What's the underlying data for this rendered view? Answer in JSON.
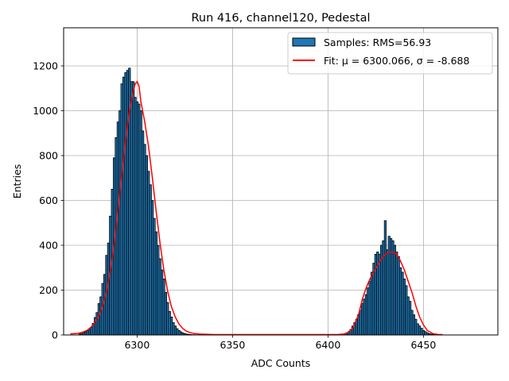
{
  "chart_data": {
    "type": "bar",
    "title": "Run 416, channel120, Pedestal",
    "xlabel": "ADC Counts",
    "ylabel": "Entries",
    "xlim": [
      6261.5,
      6489
    ],
    "ylim": [
      0,
      1370
    ],
    "xticks": [
      6300,
      6350,
      6400,
      6450
    ],
    "yticks": [
      0,
      200,
      400,
      600,
      800,
      1000,
      1200
    ],
    "grid": true,
    "legend_position": "top-right",
    "bin_width": 1,
    "series": [
      {
        "name": "Samples: RMS=56.93",
        "kind": "histogram",
        "color": "#1f77b4",
        "edgecolor": "#000000",
        "x": [
          6270,
          6271,
          6272,
          6273,
          6274,
          6275,
          6276,
          6277,
          6278,
          6279,
          6280,
          6281,
          6282,
          6283,
          6284,
          6285,
          6286,
          6287,
          6288,
          6289,
          6290,
          6291,
          6292,
          6293,
          6294,
          6295,
          6296,
          6297,
          6298,
          6299,
          6300,
          6301,
          6302,
          6303,
          6304,
          6305,
          6306,
          6307,
          6308,
          6309,
          6310,
          6311,
          6312,
          6313,
          6314,
          6315,
          6316,
          6317,
          6318,
          6319,
          6320,
          6321,
          6322,
          6323,
          6324,
          6325,
          6326,
          6327,
          6328,
          6329,
          6330,
          6409,
          6410,
          6411,
          6412,
          6413,
          6414,
          6415,
          6416,
          6417,
          6418,
          6419,
          6420,
          6421,
          6422,
          6423,
          6424,
          6425,
          6426,
          6427,
          6428,
          6429,
          6430,
          6431,
          6432,
          6433,
          6434,
          6435,
          6436,
          6437,
          6438,
          6439,
          6440,
          6441,
          6442,
          6443,
          6444,
          6445,
          6446,
          6447,
          6448,
          6449,
          6450,
          6451,
          6452,
          6453,
          6454,
          6455,
          6456,
          6457,
          6458,
          6459
        ],
        "values": [
          4,
          6,
          10,
          14,
          20,
          26,
          34,
          52,
          78,
          100,
          140,
          170,
          230,
          270,
          355,
          410,
          530,
          650,
          790,
          880,
          950,
          1000,
          1120,
          1150,
          1170,
          1180,
          1190,
          1130,
          1130,
          1060,
          1040,
          1030,
          1000,
          910,
          850,
          800,
          730,
          670,
          600,
          520,
          460,
          400,
          340,
          290,
          250,
          190,
          145,
          105,
          80,
          55,
          40,
          28,
          20,
          14,
          9,
          6,
          4,
          3,
          2,
          1,
          1,
          5,
          10,
          15,
          25,
          40,
          55,
          70,
          90,
          110,
          140,
          160,
          180,
          210,
          240,
          280,
          320,
          360,
          370,
          360,
          400,
          420,
          510,
          380,
          440,
          430,
          420,
          400,
          370,
          350,
          300,
          280,
          250,
          220,
          170,
          150,
          110,
          90,
          70,
          50,
          40,
          30,
          20,
          15,
          10,
          6,
          4,
          3,
          2,
          1,
          1
        ]
      },
      {
        "name": "Fit: μ = 6300.066, σ = -8.688",
        "kind": "line",
        "color": "#ff0000",
        "x": [
          6265,
          6268,
          6270,
          6272,
          6274,
          6276,
          6278,
          6280,
          6282,
          6284,
          6286,
          6288,
          6290,
          6292,
          6294,
          6296,
          6298,
          6299,
          6300,
          6301,
          6302,
          6304,
          6306,
          6308,
          6310,
          6312,
          6314,
          6316,
          6318,
          6320,
          6322,
          6324,
          6326,
          6328,
          6330,
          6333,
          6336,
          6340,
          6350,
          6380,
          6405,
          6408,
          6410,
          6413,
          6416,
          6418,
          6420,
          6422,
          6424,
          6426,
          6428,
          6430,
          6432,
          6434,
          6436,
          6438,
          6440,
          6442,
          6444,
          6446,
          6448,
          6450,
          6452,
          6455,
          6458,
          6460
        ],
        "values": [
          5,
          6,
          9,
          14,
          22,
          36,
          58,
          85,
          130,
          195,
          290,
          410,
          560,
          710,
          870,
          1000,
          1090,
          1120,
          1130,
          1110,
          1040,
          950,
          840,
          700,
          550,
          410,
          290,
          195,
          125,
          80,
          48,
          28,
          16,
          10,
          6,
          4,
          3,
          2,
          2,
          2,
          2,
          4,
          8,
          30,
          90,
          160,
          210,
          250,
          280,
          310,
          340,
          360,
          370,
          370,
          360,
          330,
          290,
          240,
          190,
          130,
          80,
          45,
          20,
          6,
          2,
          2
        ]
      }
    ]
  }
}
